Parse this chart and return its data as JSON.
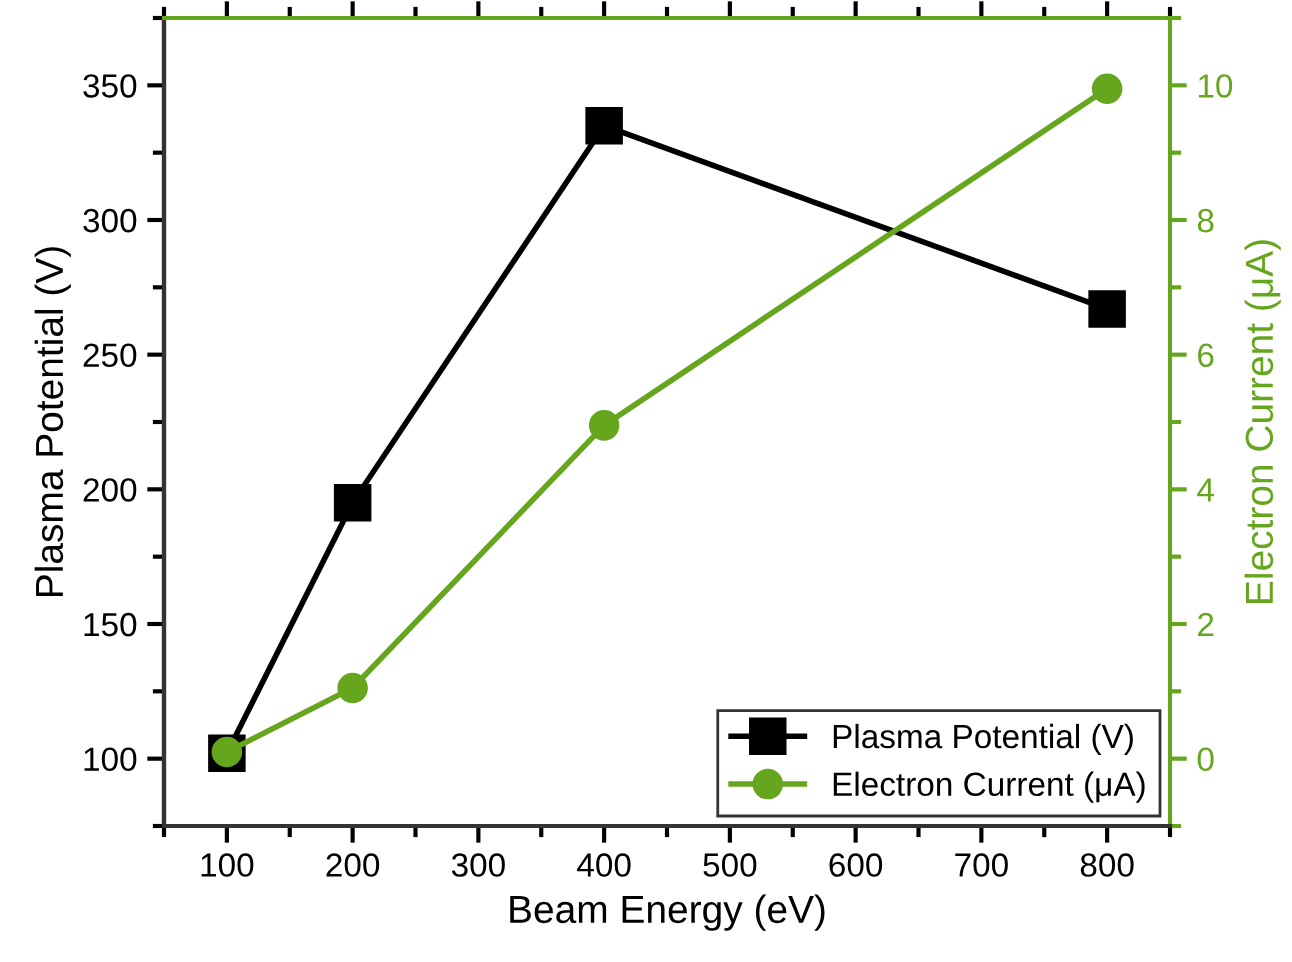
{
  "chart_data": {
    "type": "line",
    "xlabel": "Beam Energy (eV)",
    "ylabel": "Plasma Potential (V)",
    "y2label": "Electron Current (μA)",
    "x": [
      100,
      200,
      400,
      800
    ],
    "series": [
      {
        "name": "Plasma Potential (V)",
        "color": "#000000",
        "marker": "square",
        "values": [
          102,
          195,
          335,
          267
        ]
      },
      {
        "name": "Electron Current (μA)",
        "color": "#66a61e",
        "marker": "circle",
        "axis": "y2",
        "values": [
          0.1,
          1.05,
          4.95,
          9.95
        ]
      }
    ],
    "xlim": [
      50,
      850
    ],
    "xticks": [
      100,
      200,
      300,
      400,
      500,
      600,
      700,
      800
    ],
    "ylim": [
      75,
      375
    ],
    "yticks": [
      100,
      150,
      200,
      250,
      300,
      350
    ],
    "y2lim": [
      -1,
      11
    ],
    "y2ticks": [
      0,
      2,
      4,
      6,
      8,
      10
    ],
    "grid": false,
    "legend": "bottom right",
    "line_style": "solid"
  }
}
